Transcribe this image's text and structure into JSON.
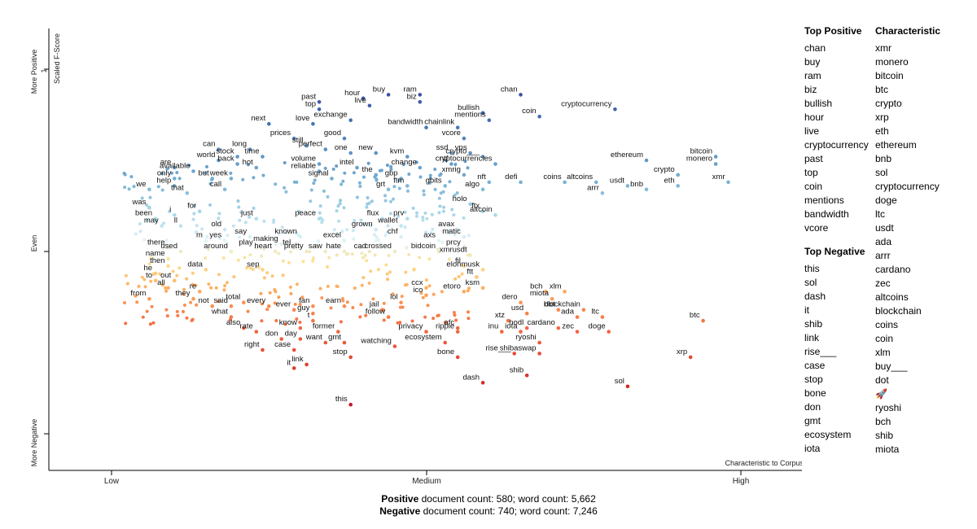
{
  "chart_data": {
    "type": "scatter",
    "title": "",
    "xlabel": "Characteristic to Corpus",
    "ylabel": "Scaled F-Score",
    "x_ticks": [
      "Low",
      "Medium",
      "High"
    ],
    "y_ticks": [
      "More Positive",
      "Even",
      "More Negative"
    ],
    "y_tick_values": [
      "1",
      "",
      "0"
    ],
    "xlim": [
      0,
      1
    ],
    "ylim": [
      0,
      1
    ],
    "grid": false,
    "legend": "none",
    "points": [
      {
        "label": "chan",
        "x": 0.65,
        "y": 0.93
      },
      {
        "label": "buy",
        "x": 0.44,
        "y": 0.93
      },
      {
        "label": "ram",
        "x": 0.49,
        "y": 0.93
      },
      {
        "label": "biz",
        "x": 0.49,
        "y": 0.91
      },
      {
        "label": "bullish",
        "x": 0.59,
        "y": 0.88
      },
      {
        "label": "hour",
        "x": 0.4,
        "y": 0.92
      },
      {
        "label": "live",
        "x": 0.41,
        "y": 0.9
      },
      {
        "label": "cryptocurrency",
        "x": 0.8,
        "y": 0.89
      },
      {
        "label": "past",
        "x": 0.33,
        "y": 0.91
      },
      {
        "label": "top",
        "x": 0.33,
        "y": 0.89
      },
      {
        "label": "coin",
        "x": 0.68,
        "y": 0.87
      },
      {
        "label": "mentions",
        "x": 0.6,
        "y": 0.86
      },
      {
        "label": "bandwidth",
        "x": 0.5,
        "y": 0.84
      },
      {
        "label": "vcore",
        "x": 0.56,
        "y": 0.81
      },
      {
        "label": "chainlink",
        "x": 0.55,
        "y": 0.84
      },
      {
        "label": "next",
        "x": 0.25,
        "y": 0.85
      },
      {
        "label": "love",
        "x": 0.32,
        "y": 0.85
      },
      {
        "label": "exchange",
        "x": 0.38,
        "y": 0.86
      },
      {
        "label": "prices",
        "x": 0.29,
        "y": 0.81
      },
      {
        "label": "good",
        "x": 0.37,
        "y": 0.81
      },
      {
        "label": "can",
        "x": 0.17,
        "y": 0.78
      },
      {
        "label": "long",
        "x": 0.22,
        "y": 0.78
      },
      {
        "label": "still",
        "x": 0.31,
        "y": 0.79
      },
      {
        "label": "perfect",
        "x": 0.34,
        "y": 0.78
      },
      {
        "label": "one",
        "x": 0.38,
        "y": 0.77
      },
      {
        "label": "new",
        "x": 0.42,
        "y": 0.77
      },
      {
        "label": "kvm",
        "x": 0.47,
        "y": 0.76
      },
      {
        "label": "ssd",
        "x": 0.54,
        "y": 0.77
      },
      {
        "label": "vps",
        "x": 0.57,
        "y": 0.77
      },
      {
        "label": "stock",
        "x": 0.2,
        "y": 0.76
      },
      {
        "label": "time",
        "x": 0.24,
        "y": 0.76
      },
      {
        "label": "world",
        "x": 0.17,
        "y": 0.75
      },
      {
        "label": "back",
        "x": 0.2,
        "y": 0.74
      },
      {
        "label": "hot",
        "x": 0.23,
        "y": 0.73
      },
      {
        "label": "volume",
        "x": 0.33,
        "y": 0.74
      },
      {
        "label": "intel",
        "x": 0.39,
        "y": 0.73
      },
      {
        "label": "change",
        "x": 0.49,
        "y": 0.73
      },
      {
        "label": "ntf",
        "x": 0.54,
        "y": 0.74
      },
      {
        "label": "crypto___",
        "x": 0.59,
        "y": 0.76
      },
      {
        "label": "cryptocurrencies",
        "x": 0.61,
        "y": 0.74
      },
      {
        "label": "are",
        "x": 0.1,
        "y": 0.73
      },
      {
        "label": "available",
        "x": 0.13,
        "y": 0.72
      },
      {
        "label": "reliable",
        "x": 0.33,
        "y": 0.72
      },
      {
        "label": "the",
        "x": 0.42,
        "y": 0.71
      },
      {
        "label": "xmrig",
        "x": 0.56,
        "y": 0.71
      },
      {
        "label": "only",
        "x": 0.1,
        "y": 0.7
      },
      {
        "label": "but",
        "x": 0.16,
        "y": 0.7
      },
      {
        "label": "week",
        "x": 0.19,
        "y": 0.7
      },
      {
        "label": "signal",
        "x": 0.35,
        "y": 0.7
      },
      {
        "label": "gbp",
        "x": 0.46,
        "y": 0.7
      },
      {
        "label": "nft",
        "x": 0.6,
        "y": 0.69
      },
      {
        "label": "defi",
        "x": 0.65,
        "y": 0.69
      },
      {
        "label": "coins",
        "x": 0.72,
        "y": 0.69
      },
      {
        "label": "altcoins",
        "x": 0.77,
        "y": 0.69
      },
      {
        "label": "usdt",
        "x": 0.82,
        "y": 0.68
      },
      {
        "label": "help",
        "x": 0.1,
        "y": 0.68
      },
      {
        "label": "ftm",
        "x": 0.47,
        "y": 0.68
      },
      {
        "label": "gbits",
        "x": 0.53,
        "y": 0.68
      },
      {
        "label": "we",
        "x": 0.06,
        "y": 0.67
      },
      {
        "label": "that",
        "x": 0.12,
        "y": 0.66
      },
      {
        "label": "call",
        "x": 0.18,
        "y": 0.67
      },
      {
        "label": "grt",
        "x": 0.44,
        "y": 0.67
      },
      {
        "label": "algo",
        "x": 0.59,
        "y": 0.67
      },
      {
        "label": "arrr",
        "x": 0.78,
        "y": 0.66
      },
      {
        "label": "bnb",
        "x": 0.85,
        "y": 0.67
      },
      {
        "label": "eth",
        "x": 0.9,
        "y": 0.68
      },
      {
        "label": "xmr",
        "x": 0.98,
        "y": 0.69
      },
      {
        "label": "ethereum",
        "x": 0.85,
        "y": 0.75
      },
      {
        "label": "bitcoin",
        "x": 0.96,
        "y": 0.76
      },
      {
        "label": "monero",
        "x": 0.96,
        "y": 0.74
      },
      {
        "label": "crypto",
        "x": 0.9,
        "y": 0.71
      },
      {
        "label": "holo",
        "x": 0.57,
        "y": 0.63
      },
      {
        "label": "was",
        "x": 0.06,
        "y": 0.62
      },
      {
        "label": "for",
        "x": 0.14,
        "y": 0.61
      },
      {
        "label": "ftx",
        "x": 0.59,
        "y": 0.61
      },
      {
        "label": "altcoin",
        "x": 0.61,
        "y": 0.6
      },
      {
        "label": "been",
        "x": 0.07,
        "y": 0.59
      },
      {
        "label": "i",
        "x": 0.1,
        "y": 0.6
      },
      {
        "label": "just",
        "x": 0.23,
        "y": 0.59
      },
      {
        "label": "peace",
        "x": 0.33,
        "y": 0.59
      },
      {
        "label": "flux",
        "x": 0.43,
        "y": 0.59
      },
      {
        "label": "prv",
        "x": 0.47,
        "y": 0.59
      },
      {
        "label": "may",
        "x": 0.08,
        "y": 0.57
      },
      {
        "label": "ll",
        "x": 0.11,
        "y": 0.57
      },
      {
        "label": "old",
        "x": 0.18,
        "y": 0.56
      },
      {
        "label": "wallet",
        "x": 0.46,
        "y": 0.57
      },
      {
        "label": "grown",
        "x": 0.42,
        "y": 0.56
      },
      {
        "label": "avax",
        "x": 0.55,
        "y": 0.56
      },
      {
        "label": "say",
        "x": 0.22,
        "y": 0.54
      },
      {
        "label": "known",
        "x": 0.3,
        "y": 0.54
      },
      {
        "label": "chf",
        "x": 0.46,
        "y": 0.54
      },
      {
        "label": "matic",
        "x": 0.56,
        "y": 0.54
      },
      {
        "label": "m",
        "x": 0.15,
        "y": 0.53
      },
      {
        "label": "yes",
        "x": 0.18,
        "y": 0.53
      },
      {
        "label": "making",
        "x": 0.27,
        "y": 0.52
      },
      {
        "label": "excel",
        "x": 0.37,
        "y": 0.53
      },
      {
        "label": "axs",
        "x": 0.52,
        "y": 0.53
      },
      {
        "label": "there",
        "x": 0.09,
        "y": 0.51
      },
      {
        "label": "used",
        "x": 0.11,
        "y": 0.5
      },
      {
        "label": "play",
        "x": 0.23,
        "y": 0.51
      },
      {
        "label": "tel",
        "x": 0.29,
        "y": 0.51
      },
      {
        "label": "pretty",
        "x": 0.31,
        "y": 0.5
      },
      {
        "label": "heart",
        "x": 0.26,
        "y": 0.5
      },
      {
        "label": "around",
        "x": 0.19,
        "y": 0.5
      },
      {
        "label": "saw",
        "x": 0.34,
        "y": 0.5
      },
      {
        "label": "hate",
        "x": 0.37,
        "y": 0.5
      },
      {
        "label": "cad",
        "x": 0.41,
        "y": 0.5
      },
      {
        "label": "crossed",
        "x": 0.45,
        "y": 0.5
      },
      {
        "label": "bidcoin",
        "x": 0.52,
        "y": 0.5
      },
      {
        "label": "prcy",
        "x": 0.56,
        "y": 0.51
      },
      {
        "label": "xmrusdt",
        "x": 0.57,
        "y": 0.49
      },
      {
        "label": "name",
        "x": 0.09,
        "y": 0.48
      },
      {
        "label": "then",
        "x": 0.09,
        "y": 0.46
      },
      {
        "label": "data",
        "x": 0.15,
        "y": 0.45
      },
      {
        "label": "sep",
        "x": 0.24,
        "y": 0.45
      },
      {
        "label": "fil",
        "x": 0.56,
        "y": 0.46
      },
      {
        "label": "elonmusk",
        "x": 0.59,
        "y": 0.45
      },
      {
        "label": "he",
        "x": 0.07,
        "y": 0.44
      },
      {
        "label": "ftt",
        "x": 0.58,
        "y": 0.43
      },
      {
        "label": "out",
        "x": 0.1,
        "y": 0.42
      },
      {
        "label": "to",
        "x": 0.07,
        "y": 0.42
      },
      {
        "label": "ksm",
        "x": 0.59,
        "y": 0.4
      },
      {
        "label": "all",
        "x": 0.09,
        "y": 0.4
      },
      {
        "label": "re",
        "x": 0.14,
        "y": 0.39
      },
      {
        "label": "ccx",
        "x": 0.5,
        "y": 0.4
      },
      {
        "label": "etoro",
        "x": 0.56,
        "y": 0.39
      },
      {
        "label": "bch",
        "x": 0.69,
        "y": 0.39
      },
      {
        "label": "xlm",
        "x": 0.72,
        "y": 0.39
      },
      {
        "label": "from",
        "x": 0.06,
        "y": 0.37
      },
      {
        "label": "they",
        "x": 0.13,
        "y": 0.37
      },
      {
        "label": "ico",
        "x": 0.5,
        "y": 0.38
      },
      {
        "label": "miota",
        "x": 0.7,
        "y": 0.37
      },
      {
        "label": "dero",
        "x": 0.65,
        "y": 0.36
      },
      {
        "label": "not",
        "x": 0.16,
        "y": 0.35
      },
      {
        "label": "said",
        "x": 0.19,
        "y": 0.35
      },
      {
        "label": "total",
        "x": 0.21,
        "y": 0.36
      },
      {
        "label": "every",
        "x": 0.25,
        "y": 0.35
      },
      {
        "label": "ever",
        "x": 0.29,
        "y": 0.34
      },
      {
        "label": "fan",
        "x": 0.32,
        "y": 0.35
      },
      {
        "label": "earn",
        "x": 0.37,
        "y": 0.35
      },
      {
        "label": "jail",
        "x": 0.43,
        "y": 0.34
      },
      {
        "label": "lol",
        "x": 0.46,
        "y": 0.36
      },
      {
        "label": "blockchain",
        "x": 0.75,
        "y": 0.34
      },
      {
        "label": "dot",
        "x": 0.71,
        "y": 0.34
      },
      {
        "label": "usd",
        "x": 0.66,
        "y": 0.33
      },
      {
        "label": "what",
        "x": 0.19,
        "y": 0.32
      },
      {
        "label": "guy",
        "x": 0.32,
        "y": 0.33
      },
      {
        "label": "follow",
        "x": 0.44,
        "y": 0.32
      },
      {
        "label": "xtz",
        "x": 0.63,
        "y": 0.31
      },
      {
        "label": "ada",
        "x": 0.74,
        "y": 0.32
      },
      {
        "label": "ltc",
        "x": 0.78,
        "y": 0.32
      },
      {
        "label": "btc",
        "x": 0.94,
        "y": 0.31
      },
      {
        "label": "t",
        "x": 0.32,
        "y": 0.31
      },
      {
        "label": "also",
        "x": 0.21,
        "y": 0.29
      },
      {
        "label": "rate",
        "x": 0.23,
        "y": 0.28
      },
      {
        "label": "know",
        "x": 0.3,
        "y": 0.29
      },
      {
        "label": "afc",
        "x": 0.55,
        "y": 0.29
      },
      {
        "label": "former",
        "x": 0.36,
        "y": 0.28
      },
      {
        "label": "privacy",
        "x": 0.5,
        "y": 0.28
      },
      {
        "label": "ripple",
        "x": 0.55,
        "y": 0.28
      },
      {
        "label": "inu",
        "x": 0.62,
        "y": 0.28
      },
      {
        "label": "iota",
        "x": 0.65,
        "y": 0.28
      },
      {
        "label": "hodl",
        "x": 0.66,
        "y": 0.29
      },
      {
        "label": "cardano",
        "x": 0.71,
        "y": 0.29
      },
      {
        "label": "zec",
        "x": 0.74,
        "y": 0.28
      },
      {
        "label": "doge",
        "x": 0.79,
        "y": 0.28
      },
      {
        "label": "don",
        "x": 0.27,
        "y": 0.26
      },
      {
        "label": "day",
        "x": 0.3,
        "y": 0.26
      },
      {
        "label": "gmt",
        "x": 0.37,
        "y": 0.25
      },
      {
        "label": "ecosystem",
        "x": 0.53,
        "y": 0.25
      },
      {
        "label": "ryoshi",
        "x": 0.68,
        "y": 0.25
      },
      {
        "label": "want",
        "x": 0.34,
        "y": 0.25
      },
      {
        "label": "right",
        "x": 0.24,
        "y": 0.23
      },
      {
        "label": "case",
        "x": 0.29,
        "y": 0.23
      },
      {
        "label": "watching",
        "x": 0.45,
        "y": 0.24
      },
      {
        "label": "rise___",
        "x": 0.64,
        "y": 0.22
      },
      {
        "label": "shibaswap",
        "x": 0.68,
        "y": 0.22
      },
      {
        "label": "bone",
        "x": 0.55,
        "y": 0.21
      },
      {
        "label": "xrp",
        "x": 0.92,
        "y": 0.21
      },
      {
        "label": "stop",
        "x": 0.38,
        "y": 0.21
      },
      {
        "label": "link",
        "x": 0.31,
        "y": 0.19
      },
      {
        "label": "it",
        "x": 0.29,
        "y": 0.18
      },
      {
        "label": "shib",
        "x": 0.66,
        "y": 0.16
      },
      {
        "label": "dash",
        "x": 0.59,
        "y": 0.14
      },
      {
        "label": "sol",
        "x": 0.82,
        "y": 0.13
      },
      {
        "label": "this",
        "x": 0.38,
        "y": 0.08
      }
    ]
  },
  "side": {
    "top_positive_heading": "Top Positive",
    "top_positive": [
      "chan",
      "buy",
      "ram",
      "biz",
      "bullish",
      "hour",
      "live",
      "cryptocurrency",
      "past",
      "top",
      "coin",
      "mentions",
      "bandwidth",
      "vcore"
    ],
    "top_negative_heading": "Top Negative",
    "top_negative": [
      "this",
      "sol",
      "dash",
      "it",
      "shib",
      "link",
      "rise___",
      "case",
      "stop",
      "bone",
      "don",
      "gmt",
      "ecosystem",
      "iota"
    ],
    "characteristic_heading": "Characteristic",
    "characteristic": [
      "xmr",
      "monero",
      "bitcoin",
      "btc",
      "crypto",
      "xrp",
      "eth",
      "ethereum",
      "bnb",
      "sol",
      "cryptocurrency",
      "doge",
      "ltc",
      "usdt",
      "ada",
      "arrr",
      "cardano",
      "zec",
      "altcoins",
      "blockchain",
      "coins",
      "coin",
      "xlm",
      "buy___",
      "dot",
      "🚀",
      "ryoshi",
      "bch",
      "shib",
      "miota"
    ]
  },
  "footer": {
    "positive_label": "Positive",
    "positive_text": " document count: 580; word count: 5,662",
    "negative_label": "Negative",
    "negative_text": " document count: 740; word count: 7,246"
  }
}
